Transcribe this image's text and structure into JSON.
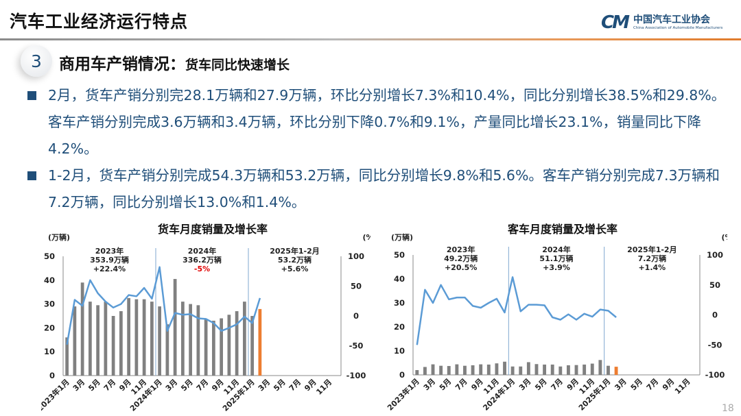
{
  "header": {
    "title": "汽车工业经济运行特点",
    "logo_cn": "中国汽车工业协会",
    "logo_en": "China Association of Automobile Manufacturers",
    "logo_mark": "CAAM"
  },
  "section": {
    "number": "3",
    "title": "商用车产销情况：",
    "subtitle": "货车同比快速增长"
  },
  "bullets": [
    "2月，货车产销分别完28.1万辆和27.9万辆，环比分别增长7.3%和10.4%，同比分别增长38.5%和29.8%。客车产销分别完成3.6万辆和3.4万辆，环比分别下降0.7%和9.1%，产量同比增长23.1%，销量同比下降4.2%。",
    "1-2月，货车产销分别完成54.3万辆和53.2万辆，同比分别增长9.8%和5.6%。客车产销分别完成7.3万辆和7.2万辆，同比分别增长13.0%和1.4%。"
  ],
  "page_number": "18",
  "colors": {
    "bar": "#808080",
    "bar_highlight": "#ed7d31",
    "line": "#5b9bd5",
    "text": "#1f4e79",
    "negative": "#e00000"
  },
  "chart_data": [
    {
      "type": "bar+line",
      "title": "货车月度销量及增长率",
      "ylabel": "(万辆)",
      "y2label": "(%)",
      "ylim": [
        0,
        50
      ],
      "yticks": [
        "0",
        "10",
        "20",
        "30",
        "40",
        "50"
      ],
      "y2lim": [
        -100,
        100
      ],
      "y2ticks": [
        "-100",
        "-50",
        "0",
        "50",
        "100"
      ],
      "categories": [
        "2023年1月",
        "",
        "3月",
        "",
        "5月",
        "",
        "7月",
        "",
        "9月",
        "",
        "11月",
        "",
        "2024年1月",
        "",
        "3月",
        "",
        "5月",
        "",
        "7月",
        "",
        "9月",
        "",
        "11月",
        "",
        "2025年1月",
        "",
        "3月",
        "",
        "5月",
        "",
        "7月",
        "",
        "9月",
        "",
        "11月",
        ""
      ],
      "bars": [
        16,
        29,
        39,
        31,
        29.5,
        31,
        25,
        27,
        32.5,
        32,
        32,
        31,
        29,
        21.5,
        40.5,
        31,
        30,
        29.5,
        23.5,
        23,
        24,
        25.5,
        27,
        31,
        25,
        27.9
      ],
      "highlight_index": 25,
      "line": [
        -48,
        27,
        17,
        60,
        38,
        24,
        14,
        20,
        35,
        33,
        47,
        29,
        82,
        -25,
        5,
        2,
        3,
        -4,
        -5,
        -12,
        -25,
        -20,
        -14,
        -1,
        -12,
        30
      ],
      "periods": [
        {
          "label": "2023年",
          "value": "353.9万辆",
          "growth": "+22.4%",
          "negative": false
        },
        {
          "label": "2024年",
          "value": "336.2万辆",
          "growth": "-5%",
          "negative": true
        },
        {
          "label": "2025年1-2月",
          "value": "53.2万辆",
          "growth": "+5.6%",
          "negative": false
        }
      ]
    },
    {
      "type": "bar+line",
      "title": "客车月度销量及增长率",
      "ylabel": "(万辆)",
      "y2label": "(%)",
      "ylim": [
        0,
        50
      ],
      "yticks": [
        "0",
        "10",
        "20",
        "30",
        "40",
        "50"
      ],
      "y2lim": [
        -100,
        100
      ],
      "y2ticks": [
        "-100",
        "-50",
        "0",
        "50",
        "100"
      ],
      "categories": [
        "2023年1月",
        "",
        "3月",
        "",
        "5月",
        "",
        "7月",
        "",
        "9月",
        "",
        "11月",
        "",
        "2024年1月",
        "",
        "3月",
        "",
        "5月",
        "",
        "7月",
        "",
        "9月",
        "",
        "11月",
        "",
        "2025年1月",
        "",
        "3月",
        "",
        "5月",
        "",
        "7月",
        "",
        "9月",
        "",
        "11月",
        ""
      ],
      "bars": [
        2,
        3.3,
        4.4,
        3.8,
        3.7,
        4.4,
        3.8,
        4,
        4.4,
        4.3,
        4.8,
        5.5,
        3.5,
        3.5,
        5.3,
        4.5,
        4.3,
        4.3,
        3.5,
        4,
        4.1,
        4.3,
        4.7,
        6.2,
        3.8,
        3.4
      ],
      "highlight_index": 25,
      "line": [
        -50,
        42,
        20,
        50,
        26,
        29,
        29,
        15,
        12,
        20,
        27,
        4,
        63,
        6,
        17,
        17,
        16,
        -4,
        -8,
        1,
        -8,
        2,
        -3,
        9,
        7,
        -4
      ],
      "periods": [
        {
          "label": "2023年",
          "value": "49.2万辆",
          "growth": "+20.5%",
          "negative": false
        },
        {
          "label": "2024年",
          "value": "51.1万辆",
          "growth": "+3.9%",
          "negative": false
        },
        {
          "label": "2025年1-2月",
          "value": "7.2万辆",
          "growth": "+1.4%",
          "negative": false
        }
      ]
    }
  ]
}
